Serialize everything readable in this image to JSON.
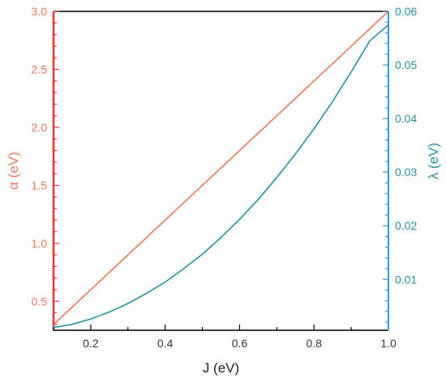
{
  "chart_data": {
    "type": "line",
    "title": "",
    "xlabel": "J (eV)",
    "ylabel_left": "α (eV)",
    "ylabel_right": "λ (eV)",
    "xlim": [
      0.1,
      1.0
    ],
    "ylim_left": [
      0.25,
      3.0
    ],
    "ylim_right": [
      0.0005,
      0.06
    ],
    "x_ticks": [
      0.2,
      0.4,
      0.6,
      0.8,
      1.0
    ],
    "x_tick_labels": [
      "0.2",
      "0.4",
      "0.6",
      "0.8",
      "1.0"
    ],
    "y_left_ticks": [
      0.5,
      1.0,
      1.5,
      2.0,
      2.5,
      3.0
    ],
    "y_left_tick_labels": [
      "0.5",
      "1.0",
      "1.5",
      "2.0",
      "2.5",
      "3.0"
    ],
    "y_right_ticks": [
      0.01,
      0.02,
      0.03,
      0.04,
      0.05,
      0.06
    ],
    "y_right_tick_labels": [
      "0.01",
      "0.02",
      "0.03",
      "0.04",
      "0.05",
      "0.06"
    ],
    "grid": false,
    "series": [
      {
        "axis": "left",
        "color": "#e8795a",
        "x": [
          0.1,
          1.0
        ],
        "y": [
          0.3,
          3.0
        ]
      },
      {
        "axis": "right",
        "color": "#2a8e9e",
        "x": [
          0.1,
          0.15,
          0.2,
          0.25,
          0.3,
          0.35,
          0.4,
          0.45,
          0.5,
          0.55,
          0.6,
          0.65,
          0.7,
          0.75,
          0.8,
          0.85,
          0.9,
          0.95,
          1.0
        ],
        "y": [
          0.001,
          0.0016,
          0.0026,
          0.0039,
          0.0055,
          0.0074,
          0.0095,
          0.012,
          0.0147,
          0.0178,
          0.0212,
          0.0249,
          0.029,
          0.0334,
          0.0381,
          0.0432,
          0.0487,
          0.0545,
          0.0575
        ]
      }
    ],
    "colors": {
      "left_axis": "#e8333a",
      "left_labels": "#e8795a",
      "right_axis": "#2a9fd6",
      "right_labels": "#2a8e9e",
      "frame": "#000000",
      "x_labels": "#333333"
    }
  }
}
